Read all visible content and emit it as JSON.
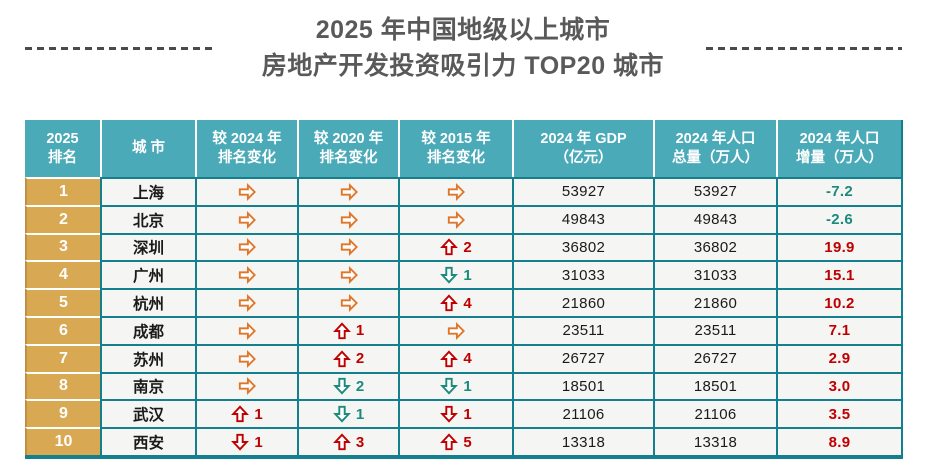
{
  "title": {
    "line1": "2025 年中国地级以上城市",
    "line2": "房地产开发投资吸引力 TOP20 城市"
  },
  "colors": {
    "header_bg": "#4BAAB8",
    "border_teal": "#147F8D",
    "rank_gold": "#D9A853",
    "cell_bg": "#F5F6F3",
    "title_gray": "#595959",
    "orange": "#E0762A",
    "red": "#C00000",
    "teal": "#1B8A7E"
  },
  "icons": {
    "same": "right-arrow-icon",
    "up": "up-arrow-icon",
    "down": "down-arrow-icon"
  },
  "chart_data": {
    "type": "table",
    "title": "2025 年中国地级以上城市 房地产开发投资吸引力 TOP20 城市",
    "columns": [
      {
        "line1": "2025",
        "line2": "排名"
      },
      {
        "line1": "城 市",
        "line2": ""
      },
      {
        "line1": "较 2024 年",
        "line2": "排名变化"
      },
      {
        "line1": "较 2020 年",
        "line2": "排名变化"
      },
      {
        "line1": "较 2015 年",
        "line2": "排名变化"
      },
      {
        "line1": "2024 年 GDP",
        "line2": "（亿元）"
      },
      {
        "line1": "2024 年人口",
        "line2": "总量（万人）"
      },
      {
        "line1": "2024 年人口",
        "line2": "增量（万人）"
      }
    ],
    "rows": [
      {
        "rank": "1",
        "city": "上海",
        "chg2024": {
          "dir": "same",
          "n": "",
          "c": "orange"
        },
        "chg2020": {
          "dir": "same",
          "n": "",
          "c": "orange"
        },
        "chg2015": {
          "dir": "same",
          "n": "",
          "c": "orange"
        },
        "gdp": "53927",
        "pop_total": "53927",
        "growth": {
          "v": "-7.2",
          "c": "teal"
        }
      },
      {
        "rank": "2",
        "city": "北京",
        "chg2024": {
          "dir": "same",
          "n": "",
          "c": "orange"
        },
        "chg2020": {
          "dir": "same",
          "n": "",
          "c": "orange"
        },
        "chg2015": {
          "dir": "same",
          "n": "",
          "c": "orange"
        },
        "gdp": "49843",
        "pop_total": "49843",
        "growth": {
          "v": "-2.6",
          "c": "teal"
        }
      },
      {
        "rank": "3",
        "city": "深圳",
        "chg2024": {
          "dir": "same",
          "n": "",
          "c": "orange"
        },
        "chg2020": {
          "dir": "same",
          "n": "",
          "c": "orange"
        },
        "chg2015": {
          "dir": "up",
          "n": "2",
          "c": "red"
        },
        "gdp": "36802",
        "pop_total": "36802",
        "growth": {
          "v": "19.9",
          "c": "red"
        }
      },
      {
        "rank": "4",
        "city": "广州",
        "chg2024": {
          "dir": "same",
          "n": "",
          "c": "orange"
        },
        "chg2020": {
          "dir": "same",
          "n": "",
          "c": "orange"
        },
        "chg2015": {
          "dir": "down",
          "n": "1",
          "c": "teal"
        },
        "gdp": "31033",
        "pop_total": "31033",
        "growth": {
          "v": "15.1",
          "c": "red"
        }
      },
      {
        "rank": "5",
        "city": "杭州",
        "chg2024": {
          "dir": "same",
          "n": "",
          "c": "orange"
        },
        "chg2020": {
          "dir": "same",
          "n": "",
          "c": "orange"
        },
        "chg2015": {
          "dir": "up",
          "n": "4",
          "c": "red"
        },
        "gdp": "21860",
        "pop_total": "21860",
        "growth": {
          "v": "10.2",
          "c": "red"
        }
      },
      {
        "rank": "6",
        "city": "成都",
        "chg2024": {
          "dir": "same",
          "n": "",
          "c": "orange"
        },
        "chg2020": {
          "dir": "up",
          "n": "1",
          "c": "red"
        },
        "chg2015": {
          "dir": "same",
          "n": "",
          "c": "orange"
        },
        "gdp": "23511",
        "pop_total": "23511",
        "growth": {
          "v": "7.1",
          "c": "red"
        }
      },
      {
        "rank": "7",
        "city": "苏州",
        "chg2024": {
          "dir": "same",
          "n": "",
          "c": "orange"
        },
        "chg2020": {
          "dir": "up",
          "n": "2",
          "c": "red"
        },
        "chg2015": {
          "dir": "up",
          "n": "4",
          "c": "red"
        },
        "gdp": "26727",
        "pop_total": "26727",
        "growth": {
          "v": "2.9",
          "c": "red"
        }
      },
      {
        "rank": "8",
        "city": "南京",
        "chg2024": {
          "dir": "same",
          "n": "",
          "c": "orange"
        },
        "chg2020": {
          "dir": "down",
          "n": "2",
          "c": "teal"
        },
        "chg2015": {
          "dir": "down",
          "n": "1",
          "c": "teal"
        },
        "gdp": "18501",
        "pop_total": "18501",
        "growth": {
          "v": "3.0",
          "c": "red"
        }
      },
      {
        "rank": "9",
        "city": "武汉",
        "chg2024": {
          "dir": "up",
          "n": "1",
          "c": "red"
        },
        "chg2020": {
          "dir": "down",
          "n": "1",
          "c": "teal"
        },
        "chg2015": {
          "dir": "down",
          "n": "1",
          "c": "red"
        },
        "gdp": "21106",
        "pop_total": "21106",
        "growth": {
          "v": "3.5",
          "c": "red"
        }
      },
      {
        "rank": "10",
        "city": "西安",
        "chg2024": {
          "dir": "down",
          "n": "1",
          "c": "red"
        },
        "chg2020": {
          "dir": "up",
          "n": "3",
          "c": "red"
        },
        "chg2015": {
          "dir": "up",
          "n": "5",
          "c": "red"
        },
        "gdp": "13318",
        "pop_total": "13318",
        "growth": {
          "v": "8.9",
          "c": "red"
        }
      }
    ]
  }
}
